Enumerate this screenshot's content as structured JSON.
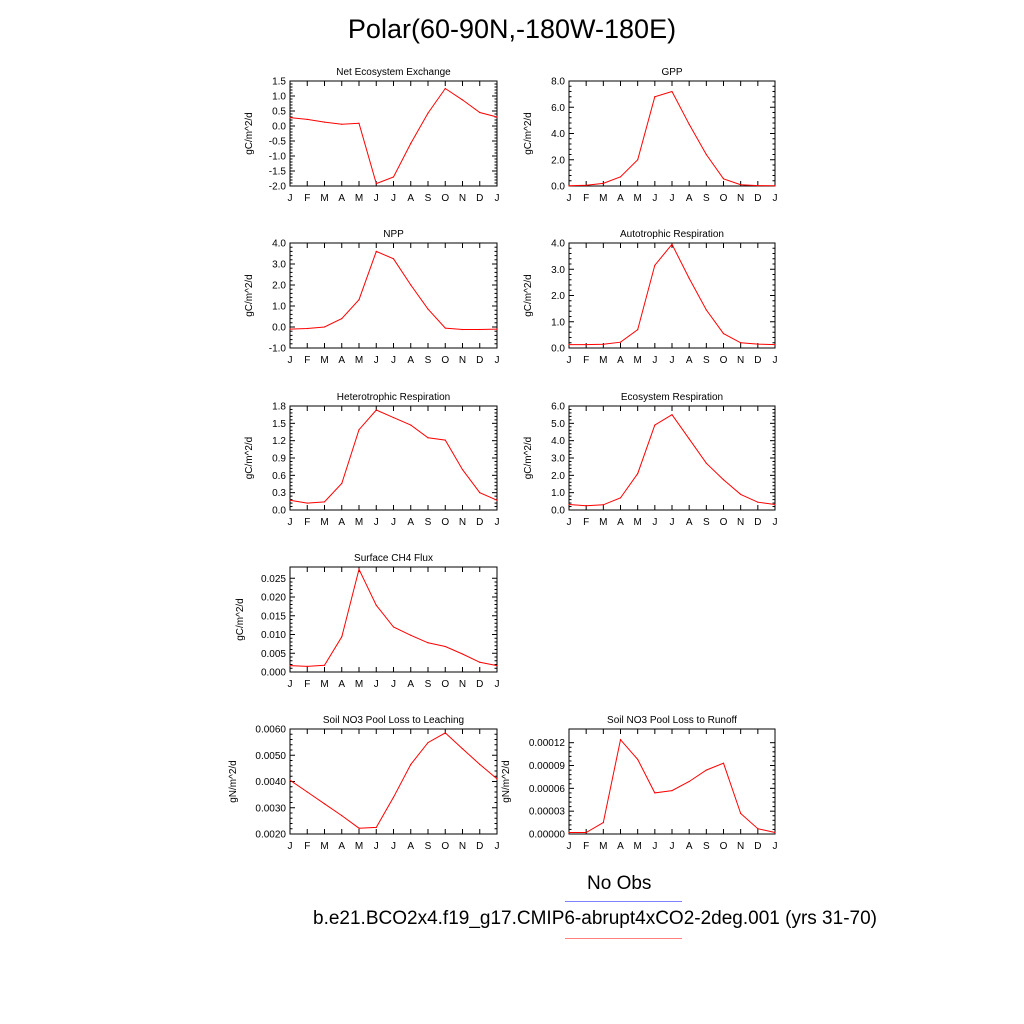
{
  "page": {
    "title": "Polar(60-90N,-180W-180E)",
    "legend": [
      {
        "label": "No Obs",
        "color": "#8080ff"
      },
      {
        "label": "b.e21.BCO2x4.f19_g17.CMIP6-abrupt4xCO2-2deg.001 (yrs 31-70)",
        "color": "#ff8080"
      }
    ]
  },
  "chart_data": [
    {
      "type": "line",
      "title": "Net Ecosystem Exchange",
      "ylabel": "gC/m^2/d",
      "x": [
        "J",
        "F",
        "M",
        "A",
        "M",
        "J",
        "J",
        "A",
        "S",
        "O",
        "N",
        "D",
        "J"
      ],
      "yticks": [
        "1.5",
        "1.0",
        "0.5",
        "0.0",
        "-0.5",
        "-1.0",
        "-1.5",
        "-2.0"
      ],
      "ylim": [
        -2.0,
        1.5
      ],
      "line_color": "#ff0000",
      "values": [
        0.28,
        0.22,
        0.13,
        0.06,
        0.09,
        -1.92,
        -1.7,
        -0.58,
        0.43,
        1.25,
        0.87,
        0.45,
        0.3
      ]
    },
    {
      "type": "line",
      "title": "GPP",
      "ylabel": "gC/m^2/d",
      "x": [
        "J",
        "F",
        "M",
        "A",
        "M",
        "J",
        "J",
        "A",
        "S",
        "O",
        "N",
        "D",
        "J"
      ],
      "yticks": [
        "8.0",
        "6.0",
        "4.0",
        "2.0",
        "0.0"
      ],
      "ylim": [
        0,
        8
      ],
      "line_color": "#ff0000",
      "values": [
        0.02,
        0.05,
        0.2,
        0.7,
        2.0,
        6.8,
        7.2,
        4.7,
        2.4,
        0.55,
        0.1,
        0.03,
        0.02
      ]
    },
    {
      "type": "line",
      "title": "NPP",
      "ylabel": "gC/m^2/d",
      "x": [
        "J",
        "F",
        "M",
        "A",
        "M",
        "J",
        "J",
        "A",
        "S",
        "O",
        "N",
        "D",
        "J"
      ],
      "yticks": [
        "4.0",
        "3.0",
        "2.0",
        "1.0",
        "0.0",
        "-1.0"
      ],
      "ylim": [
        -1,
        4
      ],
      "line_color": "#ff0000",
      "values": [
        -0.1,
        -0.07,
        0.0,
        0.4,
        1.3,
        3.6,
        3.25,
        2.0,
        0.85,
        -0.05,
        -0.12,
        -0.12,
        -0.1
      ]
    },
    {
      "type": "line",
      "title": "Autotrophic Respiration",
      "ylabel": "gC/m^2/d",
      "x": [
        "J",
        "F",
        "M",
        "A",
        "M",
        "J",
        "J",
        "A",
        "S",
        "O",
        "N",
        "D",
        "J"
      ],
      "yticks": [
        "4.0",
        "3.0",
        "2.0",
        "1.0",
        "0.0"
      ],
      "ylim": [
        0,
        4
      ],
      "line_color": "#ff0000",
      "values": [
        0.13,
        0.13,
        0.14,
        0.22,
        0.7,
        3.15,
        3.95,
        2.65,
        1.45,
        0.55,
        0.2,
        0.15,
        0.13
      ]
    },
    {
      "type": "line",
      "title": "Heterotrophic Respiration",
      "ylabel": "gC/m^2/d",
      "x": [
        "J",
        "F",
        "M",
        "A",
        "M",
        "J",
        "J",
        "A",
        "S",
        "O",
        "N",
        "D",
        "J"
      ],
      "yticks": [
        "1.8",
        "1.5",
        "1.2",
        "0.9",
        "0.6",
        "0.3",
        "0.0"
      ],
      "ylim": [
        0,
        1.8
      ],
      "line_color": "#ff0000",
      "values": [
        0.17,
        0.12,
        0.14,
        0.46,
        1.39,
        1.73,
        1.6,
        1.47,
        1.25,
        1.21,
        0.7,
        0.3,
        0.17
      ]
    },
    {
      "type": "line",
      "title": "Ecosystem Respiration",
      "ylabel": "gC/m^2/d",
      "x": [
        "J",
        "F",
        "M",
        "A",
        "M",
        "J",
        "J",
        "A",
        "S",
        "O",
        "N",
        "D",
        "J"
      ],
      "yticks": [
        "6.0",
        "5.0",
        "4.0",
        "3.0",
        "2.0",
        "1.0",
        "0.0"
      ],
      "ylim": [
        0,
        6
      ],
      "line_color": "#ff0000",
      "values": [
        0.32,
        0.25,
        0.3,
        0.7,
        2.1,
        4.9,
        5.5,
        4.1,
        2.7,
        1.75,
        0.9,
        0.45,
        0.32
      ]
    },
    {
      "type": "line",
      "title": "Surface CH4 Flux",
      "ylabel": "gC/m^2/d",
      "x": [
        "J",
        "F",
        "M",
        "A",
        "M",
        "J",
        "J",
        "A",
        "S",
        "O",
        "N",
        "D",
        "J"
      ],
      "yticks": [
        "0.025",
        "0.020",
        "0.015",
        "0.010",
        "0.005",
        "0.000"
      ],
      "ylim": [
        0,
        0.028
      ],
      "line_color": "#ff0000",
      "values": [
        0.0017,
        0.0015,
        0.0018,
        0.0094,
        0.0274,
        0.0178,
        0.012,
        0.0098,
        0.0078,
        0.0068,
        0.0048,
        0.0026,
        0.0017
      ]
    },
    {
      "type": "line",
      "title": "Soil NO3 Pool Loss to Leaching",
      "ylabel": "gN/m^2/d",
      "x": [
        "J",
        "F",
        "M",
        "A",
        "M",
        "J",
        "J",
        "A",
        "S",
        "O",
        "N",
        "D",
        "J"
      ],
      "yticks": [
        "0.0060",
        "0.0050",
        "0.0040",
        "0.0030",
        "0.0020"
      ],
      "ylim": [
        0.002,
        0.006
      ],
      "line_color": "#ff0000",
      "values": [
        0.00405,
        0.0036,
        0.00315,
        0.0027,
        0.00222,
        0.00225,
        0.0034,
        0.00465,
        0.00548,
        0.00585,
        0.00525,
        0.00465,
        0.0041
      ]
    },
    {
      "type": "line",
      "title": "Soil NO3 Pool Loss to Runoff",
      "ylabel": "gN/m^2/d",
      "x": [
        "J",
        "F",
        "M",
        "A",
        "M",
        "J",
        "J",
        "A",
        "S",
        "O",
        "N",
        "D",
        "J"
      ],
      "yticks": [
        "0.00012",
        "0.00009",
        "0.00006",
        "0.00003",
        "0.00000"
      ],
      "ylim": [
        0,
        0.000138
      ],
      "line_color": "#ff0000",
      "values": [
        2e-06,
        2e-06,
        1.5e-05,
        0.000124,
        9.8e-05,
        5.4e-05,
        5.7e-05,
        6.9e-05,
        8.4e-05,
        9.3e-05,
        2.7e-05,
        7e-06,
        2e-06
      ]
    }
  ]
}
